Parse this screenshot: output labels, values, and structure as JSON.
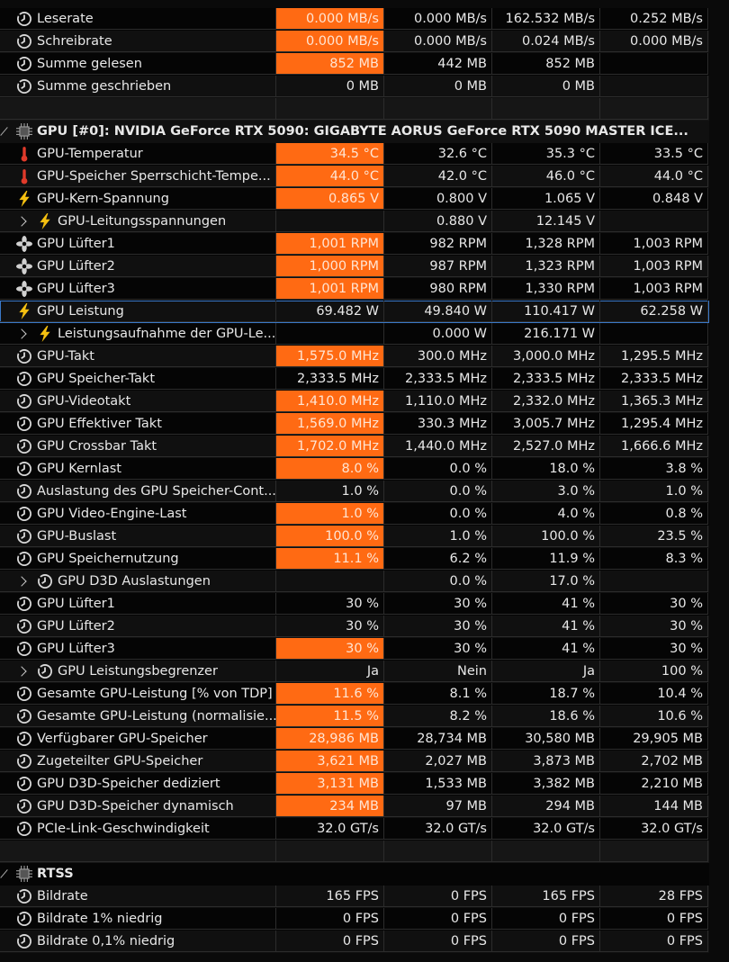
{
  "rows": [
    {
      "type": "sensor",
      "icon": "clock",
      "highlight": true,
      "label": "Leserate",
      "values": [
        "0.000 MB/s",
        "0.000 MB/s",
        "162.532 MB/s",
        "0.252 MB/s"
      ]
    },
    {
      "type": "sensor",
      "icon": "clock",
      "highlight": true,
      "label": "Schreibrate",
      "values": [
        "0.000 MB/s",
        "0.000 MB/s",
        "0.024 MB/s",
        "0.000 MB/s"
      ]
    },
    {
      "type": "sensor",
      "icon": "clock",
      "highlight": true,
      "label": "Summe gelesen",
      "values": [
        "852 MB",
        "442 MB",
        "852 MB",
        null
      ]
    },
    {
      "type": "sensor",
      "icon": "clock",
      "label": "Summe geschrieben",
      "values": [
        "0 MB",
        "0 MB",
        "0 MB",
        null
      ]
    },
    {
      "type": "blank"
    },
    {
      "type": "group",
      "label": "GPU [#0]: NVIDIA GeForce RTX 5090: GIGABYTE AORUS GeForce RTX 5090 MASTER ICE..."
    },
    {
      "type": "sensor",
      "icon": "thermo",
      "highlight": true,
      "label": "GPU-Temperatur",
      "values": [
        "34.5 °C",
        "32.6 °C",
        "35.3 °C",
        "33.5 °C"
      ]
    },
    {
      "type": "sensor",
      "icon": "thermo",
      "highlight": true,
      "label": "GPU-Speicher Sperrschicht-Tempe...",
      "values": [
        "44.0 °C",
        "42.0 °C",
        "46.0 °C",
        "44.0 °C"
      ]
    },
    {
      "type": "sensor",
      "icon": "bolt",
      "highlight": true,
      "label": "GPU-Kern-Spannung",
      "values": [
        "0.865 V",
        "0.800 V",
        "1.065 V",
        "0.848 V"
      ]
    },
    {
      "type": "sensor",
      "icon": "bolt",
      "expandable": true,
      "label": "GPU-Leitungsspannungen",
      "values": [
        null,
        "0.880 V",
        "12.145 V",
        null
      ]
    },
    {
      "type": "sensor",
      "icon": "fan",
      "highlight": true,
      "label": "GPU Lüfter1",
      "values": [
        "1,001 RPM",
        "982 RPM",
        "1,328 RPM",
        "1,003 RPM"
      ]
    },
    {
      "type": "sensor",
      "icon": "fan",
      "highlight": true,
      "label": "GPU Lüfter2",
      "values": [
        "1,000 RPM",
        "987 RPM",
        "1,323 RPM",
        "1,003 RPM"
      ]
    },
    {
      "type": "sensor",
      "icon": "fan",
      "highlight": true,
      "label": "GPU Lüfter3",
      "values": [
        "1,001 RPM",
        "980 RPM",
        "1,330 RPM",
        "1,003 RPM"
      ]
    },
    {
      "type": "sensor",
      "icon": "bolt",
      "selected": true,
      "label": "GPU Leistung",
      "values": [
        "69.482 W",
        "49.840 W",
        "110.417 W",
        "62.258 W"
      ]
    },
    {
      "type": "sensor",
      "icon": "bolt",
      "expandable": true,
      "label": "Leistungsaufnahme der GPU-Le...",
      "values": [
        null,
        "0.000 W",
        "216.171 W",
        null
      ]
    },
    {
      "type": "sensor",
      "icon": "clock",
      "highlight": true,
      "label": "GPU-Takt",
      "values": [
        "1,575.0 MHz",
        "300.0 MHz",
        "3,000.0 MHz",
        "1,295.5 MHz"
      ]
    },
    {
      "type": "sensor",
      "icon": "clock",
      "label": "GPU Speicher-Takt",
      "values": [
        "2,333.5 MHz",
        "2,333.5 MHz",
        "2,333.5 MHz",
        "2,333.5 MHz"
      ]
    },
    {
      "type": "sensor",
      "icon": "clock",
      "highlight": true,
      "label": "GPU-Videotakt",
      "values": [
        "1,410.0 MHz",
        "1,110.0 MHz",
        "2,332.0 MHz",
        "1,365.3 MHz"
      ]
    },
    {
      "type": "sensor",
      "icon": "clock",
      "highlight": true,
      "label": "GPU Effektiver Takt",
      "values": [
        "1,569.0 MHz",
        "330.3 MHz",
        "3,005.7 MHz",
        "1,295.4 MHz"
      ]
    },
    {
      "type": "sensor",
      "icon": "clock",
      "highlight": true,
      "label": "GPU Crossbar Takt",
      "values": [
        "1,702.0 MHz",
        "1,440.0 MHz",
        "2,527.0 MHz",
        "1,666.6 MHz"
      ]
    },
    {
      "type": "sensor",
      "icon": "clock",
      "highlight": true,
      "label": "GPU Kernlast",
      "values": [
        "8.0 %",
        "0.0 %",
        "18.0 %",
        "3.8 %"
      ]
    },
    {
      "type": "sensor",
      "icon": "clock",
      "label": "Auslastung des GPU Speicher-Cont...",
      "values": [
        "1.0 %",
        "0.0 %",
        "3.0 %",
        "1.0 %"
      ]
    },
    {
      "type": "sensor",
      "icon": "clock",
      "highlight": true,
      "label": "GPU Video-Engine-Last",
      "values": [
        "1.0 %",
        "0.0 %",
        "4.0 %",
        "0.8 %"
      ]
    },
    {
      "type": "sensor",
      "icon": "clock",
      "highlight": true,
      "label": "GPU-Buslast",
      "values": [
        "100.0 %",
        "1.0 %",
        "100.0 %",
        "23.5 %"
      ]
    },
    {
      "type": "sensor",
      "icon": "clock",
      "highlight": true,
      "label": "GPU Speichernutzung",
      "values": [
        "11.1 %",
        "6.2 %",
        "11.9 %",
        "8.3 %"
      ]
    },
    {
      "type": "sensor",
      "icon": "clock",
      "expandable": true,
      "label": "GPU D3D Auslastungen",
      "values": [
        null,
        "0.0 %",
        "17.0 %",
        null
      ]
    },
    {
      "type": "sensor",
      "icon": "clock",
      "label": "GPU Lüfter1",
      "values": [
        "30 %",
        "30 %",
        "41 %",
        "30 %"
      ]
    },
    {
      "type": "sensor",
      "icon": "clock",
      "label": "GPU Lüfter2",
      "values": [
        "30 %",
        "30 %",
        "41 %",
        "30 %"
      ]
    },
    {
      "type": "sensor",
      "icon": "clock",
      "highlight": true,
      "label": "GPU Lüfter3",
      "values": [
        "30 %",
        "30 %",
        "41 %",
        "30 %"
      ]
    },
    {
      "type": "sensor",
      "icon": "clock",
      "expandable": true,
      "label": "GPU Leistungsbegrenzer",
      "values": [
        "Ja",
        "Nein",
        "Ja",
        "100 %"
      ]
    },
    {
      "type": "sensor",
      "icon": "clock",
      "highlight": true,
      "label": "Gesamte GPU-Leistung [% von TDP]",
      "values": [
        "11.6 %",
        "8.1 %",
        "18.7 %",
        "10.4 %"
      ]
    },
    {
      "type": "sensor",
      "icon": "clock",
      "highlight": true,
      "label": "Gesamte GPU-Leistung (normalisie...",
      "values": [
        "11.5 %",
        "8.2 %",
        "18.6 %",
        "10.6 %"
      ]
    },
    {
      "type": "sensor",
      "icon": "clock",
      "highlight": true,
      "label": "Verfügbarer GPU-Speicher",
      "values": [
        "28,986 MB",
        "28,734 MB",
        "30,580 MB",
        "29,905 MB"
      ]
    },
    {
      "type": "sensor",
      "icon": "clock",
      "highlight": true,
      "label": "Zugeteilter GPU-Speicher",
      "values": [
        "3,621 MB",
        "2,027 MB",
        "3,873 MB",
        "2,702 MB"
      ]
    },
    {
      "type": "sensor",
      "icon": "clock",
      "highlight": true,
      "label": "GPU D3D-Speicher dediziert",
      "values": [
        "3,131 MB",
        "1,533 MB",
        "3,382 MB",
        "2,210 MB"
      ]
    },
    {
      "type": "sensor",
      "icon": "clock",
      "highlight": true,
      "label": "GPU D3D-Speicher dynamisch",
      "values": [
        "234 MB",
        "97 MB",
        "294 MB",
        "144 MB"
      ]
    },
    {
      "type": "sensor",
      "icon": "clock",
      "label": "PCIe-Link-Geschwindigkeit",
      "values": [
        "32.0 GT/s",
        "32.0 GT/s",
        "32.0 GT/s",
        "32.0 GT/s"
      ]
    },
    {
      "type": "blank"
    },
    {
      "type": "group",
      "label": "RTSS"
    },
    {
      "type": "sensor",
      "icon": "clock",
      "label": "Bildrate",
      "values": [
        "165 FPS",
        "0 FPS",
        "165 FPS",
        "28 FPS"
      ]
    },
    {
      "type": "sensor",
      "icon": "clock",
      "label": "Bildrate 1% niedrig",
      "values": [
        "0 FPS",
        "0 FPS",
        "0 FPS",
        "0 FPS"
      ]
    },
    {
      "type": "sensor",
      "icon": "clock",
      "label": "Bildrate 0,1% niedrig",
      "values": [
        "0 FPS",
        "0 FPS",
        "0 FPS",
        "0 FPS"
      ]
    }
  ]
}
